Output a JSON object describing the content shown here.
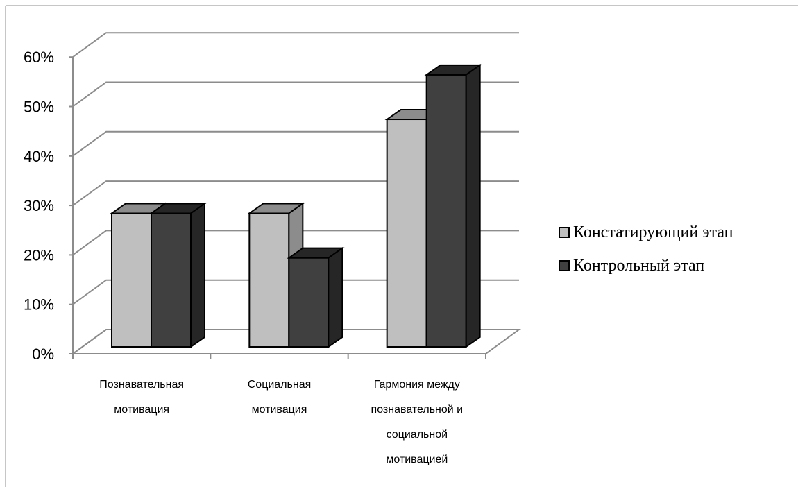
{
  "chart_data": {
    "type": "bar",
    "subtype": "3d-clustered-column",
    "y_ticks": [
      "0%",
      "10%",
      "20%",
      "30%",
      "40%",
      "50%",
      "60%"
    ],
    "ylim": [
      0,
      60
    ],
    "grid": true,
    "legend_position": "right",
    "categories": [
      [
        "Познавательная",
        "мотивация"
      ],
      [
        "Социальная",
        "мотивация"
      ],
      [
        "Гармония между",
        "познавательной и",
        "социальной",
        "мотивацией"
      ]
    ],
    "series": [
      {
        "name": "Констатирующий этап",
        "values": [
          27,
          27,
          46
        ],
        "color": "#bfbfbf",
        "top_color": "#8c8c8c",
        "side_color": "#8c8c8c"
      },
      {
        "name": "Контрольный этап",
        "values": [
          27,
          18,
          55
        ],
        "color": "#404040",
        "top_color": "#262626",
        "side_color": "#262626"
      }
    ]
  }
}
